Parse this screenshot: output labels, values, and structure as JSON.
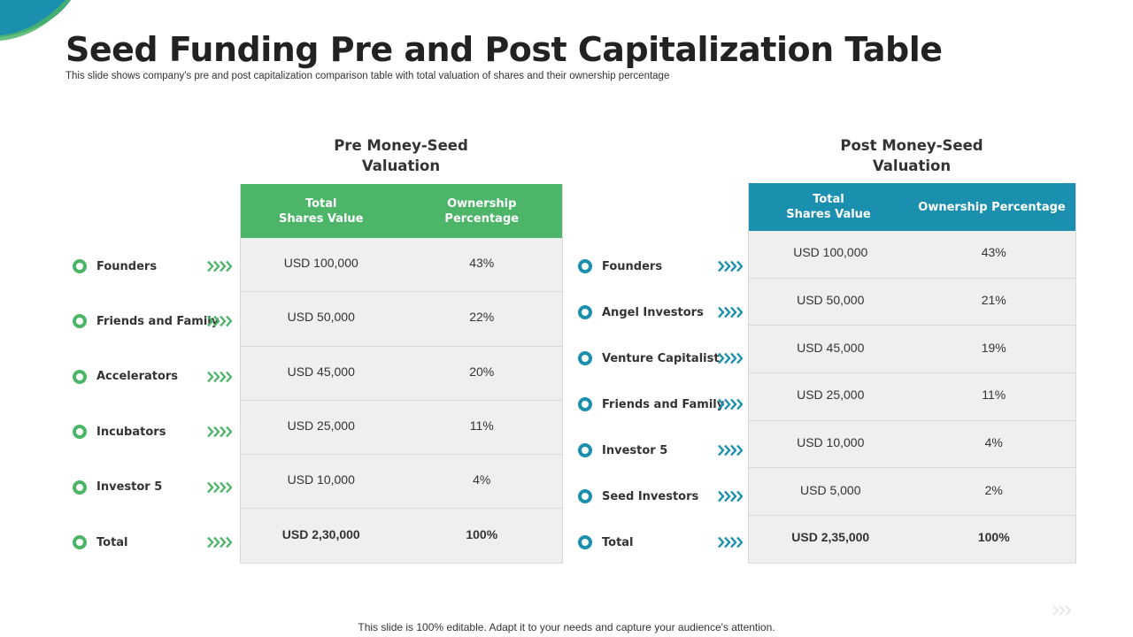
{
  "title": "Seed Funding Pre and Post Capitalization Table",
  "subtitle": "This slide shows company's pre and post capitalization comparison table with total valuation of shares and their ownership percentage",
  "colors": {
    "green": "#4cb568",
    "teal": "#1a8fae"
  },
  "pre": {
    "heading_line1": "Pre Money-Seed",
    "heading_line2": "Valuation",
    "col1_line1": "Total",
    "col1_line2": "Shares Value",
    "col2_line1": "Ownership",
    "col2_line2": "Percentage",
    "rows": [
      {
        "label": "Founders",
        "value": "USD 100,000",
        "pct": "43%"
      },
      {
        "label": "Friends and Family",
        "value": "USD 50,000",
        "pct": "22%"
      },
      {
        "label": "Accelerators",
        "value": "USD 45,000",
        "pct": "20%"
      },
      {
        "label": "Incubators",
        "value": "USD 25,000",
        "pct": "11%"
      },
      {
        "label": "Investor 5",
        "value": "USD 10,000",
        "pct": "4%"
      },
      {
        "label": "Total",
        "value": "USD 2,30,000",
        "pct": "100%"
      }
    ]
  },
  "post": {
    "heading_line1": "Post Money-Seed",
    "heading_line2": "Valuation",
    "col1_line1": "Total",
    "col1_line2": "Shares Value",
    "col2_line1": "Ownership Percentage",
    "rows": [
      {
        "label": "Founders",
        "value": "USD 100,000",
        "pct": "43%"
      },
      {
        "label": "Angel Investors",
        "value": "USD 50,000",
        "pct": "21%"
      },
      {
        "label": "Venture Capitalist",
        "value": "USD 45,000",
        "pct": "19%"
      },
      {
        "label": "Friends and Family",
        "value": "USD 25,000",
        "pct": "11%"
      },
      {
        "label": "Investor 5",
        "value": "USD 10,000",
        "pct": "4%"
      },
      {
        "label": "Seed Investors",
        "value": "USD 5,000",
        "pct": "2%"
      },
      {
        "label": "Total",
        "value": "USD 2,35,000",
        "pct": "100%"
      }
    ]
  },
  "footer": "This slide is 100% editable. Adapt it to your needs and capture your audience's attention."
}
